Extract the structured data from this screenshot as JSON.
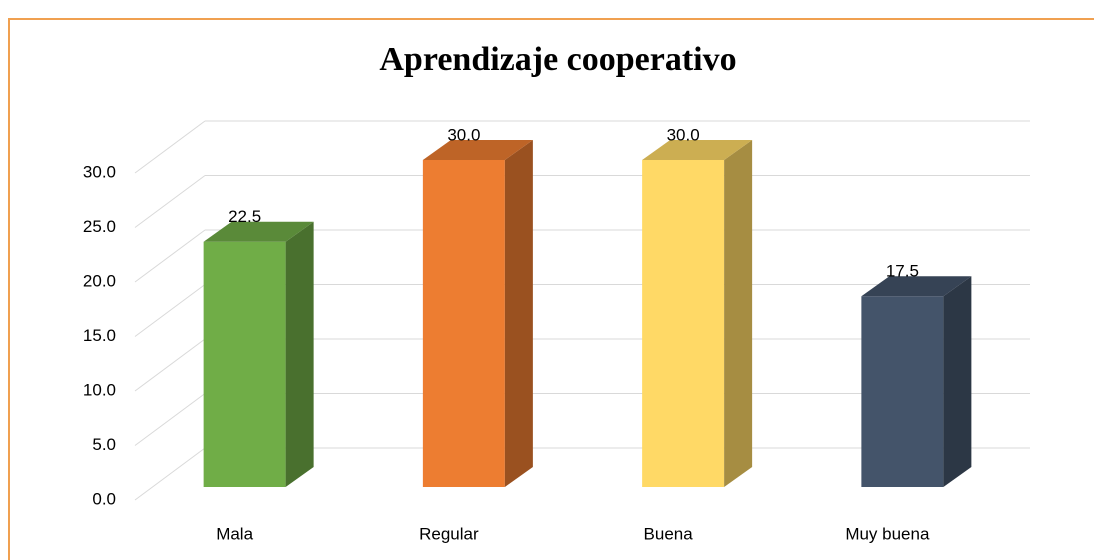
{
  "chart_data": {
    "type": "bar3d",
    "title": "Aprendizaje cooperativo",
    "categories": [
      "Mala",
      "Regular",
      "Buena",
      "Muy buena"
    ],
    "values": [
      22.5,
      30,
      30,
      17.5
    ],
    "value_labels": [
      "22.5",
      "30.0",
      "30.0",
      "17.5"
    ],
    "colors": [
      "#70ad47",
      "#ed7d31",
      "#ffd966",
      "#44546a"
    ],
    "ylim": [
      0,
      30
    ],
    "yticks": [
      {
        "value": 0,
        "label": "0.0"
      },
      {
        "value": 5,
        "label": "5.0"
      },
      {
        "value": 10,
        "label": "10.0"
      },
      {
        "value": 15,
        "label": "15.0"
      },
      {
        "value": 20,
        "label": "20.0"
      },
      {
        "value": 25,
        "label": "25.0"
      },
      {
        "value": 30,
        "label": "30.0"
      }
    ],
    "grid": true
  }
}
